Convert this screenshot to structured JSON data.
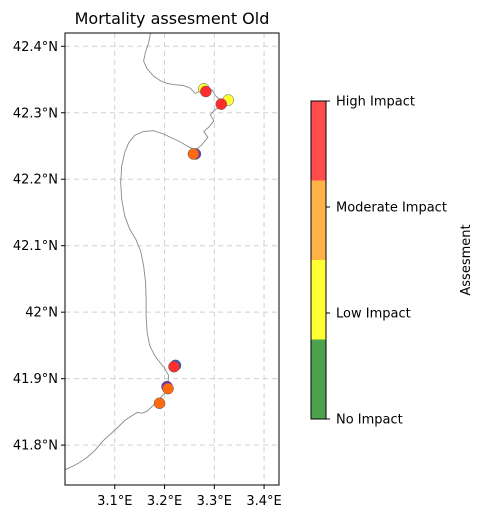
{
  "chart_data": {
    "type": "scatter",
    "title": "Mortality assesment Old",
    "x_ticks": [
      "3.1°E",
      "3.2°E",
      "3.3°E",
      "3.4°E"
    ],
    "x_tick_values": [
      3.1,
      3.2,
      3.3,
      3.4
    ],
    "y_ticks": [
      "41.8°N",
      "41.9°N",
      "42°N",
      "42.1°N",
      "42.2°N",
      "42.3°N",
      "42.4°N"
    ],
    "y_tick_values": [
      41.8,
      41.9,
      42.0,
      42.1,
      42.2,
      42.3,
      42.4
    ],
    "xlim": [
      3.0,
      3.43
    ],
    "ylim": [
      41.74,
      42.42
    ],
    "grid": true,
    "coastline_color": "#888888",
    "coastline": [
      [
        3.172,
        42.42
      ],
      [
        3.168,
        42.405
      ],
      [
        3.162,
        42.392
      ],
      [
        3.158,
        42.378
      ],
      [
        3.165,
        42.366
      ],
      [
        3.178,
        42.355
      ],
      [
        3.192,
        42.348
      ],
      [
        3.205,
        42.344
      ],
      [
        3.222,
        42.342
      ],
      [
        3.238,
        42.341
      ],
      [
        3.252,
        42.337
      ],
      [
        3.262,
        42.329
      ],
      [
        3.272,
        42.333
      ],
      [
        3.284,
        42.339
      ],
      [
        3.296,
        42.334
      ],
      [
        3.302,
        42.326
      ],
      [
        3.312,
        42.319
      ],
      [
        3.324,
        42.321
      ],
      [
        3.318,
        42.311
      ],
      [
        3.302,
        42.305
      ],
      [
        3.292,
        42.297
      ],
      [
        3.299,
        42.288
      ],
      [
        3.29,
        42.279
      ],
      [
        3.279,
        42.272
      ],
      [
        3.287,
        42.263
      ],
      [
        3.274,
        42.251
      ],
      [
        3.262,
        42.244
      ],
      [
        3.248,
        42.249
      ],
      [
        3.232,
        42.256
      ],
      [
        3.215,
        42.262
      ],
      [
        3.198,
        42.268
      ],
      [
        3.178,
        42.273
      ],
      [
        3.158,
        42.272
      ],
      [
        3.14,
        42.266
      ],
      [
        3.128,
        42.255
      ],
      [
        3.12,
        42.24
      ],
      [
        3.114,
        42.22
      ],
      [
        3.112,
        42.195
      ],
      [
        3.114,
        42.17
      ],
      [
        3.12,
        42.145
      ],
      [
        3.13,
        42.125
      ],
      [
        3.142,
        42.11
      ],
      [
        3.152,
        42.092
      ],
      [
        3.158,
        42.07
      ],
      [
        3.162,
        42.045
      ],
      [
        3.163,
        42.02
      ],
      [
        3.163,
        41.995
      ],
      [
        3.165,
        41.97
      ],
      [
        3.17,
        41.95
      ],
      [
        3.18,
        41.935
      ],
      [
        3.19,
        41.925
      ],
      [
        3.2,
        41.916
      ],
      [
        3.208,
        41.905
      ],
      [
        3.207,
        41.89
      ],
      [
        3.2,
        41.878
      ],
      [
        3.19,
        41.87
      ],
      [
        3.18,
        41.862
      ],
      [
        3.172,
        41.856
      ],
      [
        3.165,
        41.851
      ],
      [
        3.155,
        41.848
      ],
      [
        3.145,
        41.849
      ],
      [
        3.132,
        41.843
      ],
      [
        3.12,
        41.837
      ],
      [
        3.108,
        41.828
      ],
      [
        3.092,
        41.817
      ],
      [
        3.076,
        41.806
      ],
      [
        3.06,
        41.792
      ],
      [
        3.045,
        41.782
      ],
      [
        3.03,
        41.774
      ],
      [
        3.015,
        41.768
      ],
      [
        3.0,
        41.763
      ]
    ],
    "points": [
      {
        "lon": 3.279,
        "lat": 42.336,
        "color": "#ffff33"
      },
      {
        "lon": 3.283,
        "lat": 42.332,
        "color": "#ff2d2d"
      },
      {
        "lon": 3.328,
        "lat": 42.319,
        "color": "#ffff33"
      },
      {
        "lon": 3.314,
        "lat": 42.313,
        "color": "#ff2d2d"
      },
      {
        "lon": 3.262,
        "lat": 42.238,
        "color": "#7b2fbe"
      },
      {
        "lon": 3.258,
        "lat": 42.238,
        "color": "#ff6a10"
      },
      {
        "lon": 3.222,
        "lat": 41.92,
        "color": "#2d5fd6"
      },
      {
        "lon": 3.219,
        "lat": 41.918,
        "color": "#ff2d2d"
      },
      {
        "lon": 3.205,
        "lat": 41.888,
        "color": "#7b2fbe"
      },
      {
        "lon": 3.207,
        "lat": 41.885,
        "color": "#ff6a10"
      },
      {
        "lon": 3.19,
        "lat": 41.863,
        "color": "#ff6a10"
      }
    ],
    "colorbar": {
      "label": "Assesment",
      "ticks": [
        "No Impact",
        "Low Impact",
        "Moderate Impact",
        "High Impact"
      ],
      "tick_values": [
        0,
        1,
        2,
        3
      ],
      "bands": [
        {
          "color": "#4da24d"
        },
        {
          "color": "#ffff33"
        },
        {
          "color": "#ffb347"
        },
        {
          "color": "#ff4d4d"
        }
      ]
    }
  }
}
